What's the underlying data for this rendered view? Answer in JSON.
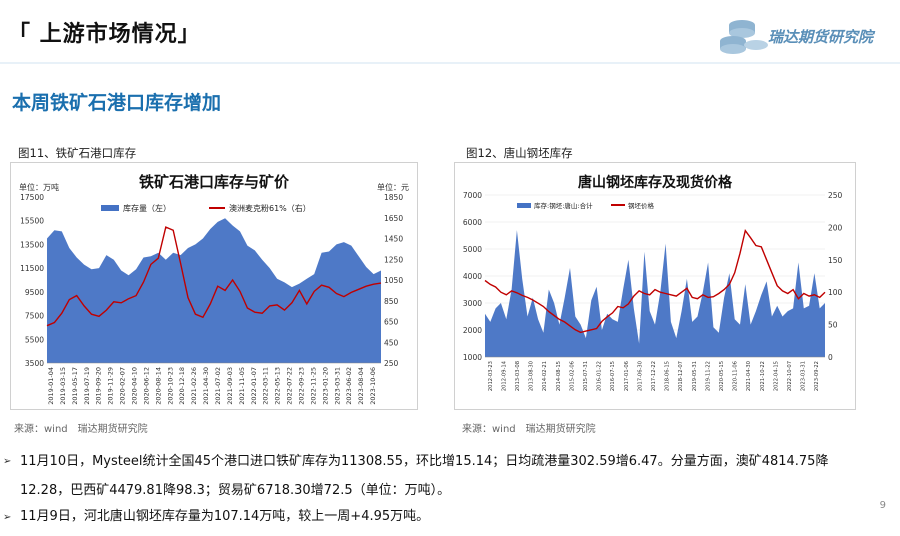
{
  "header": {
    "title": "「 上游市场情况」",
    "logo_text": "瑞达期货研究院"
  },
  "subtitle": "本周铁矿石港口库存增加",
  "fig11": {
    "caption": "图11、铁矿石港口库存",
    "chart_title": "铁矿石港口库存与矿价",
    "left_unit": "单位：万吨",
    "right_unit": "单位：元",
    "legend_area": "库存量（左）",
    "legend_line": "澳洲麦克粉61%（右）",
    "source": "来源：wind　瑞达期货研究院"
  },
  "fig12": {
    "caption": "图12、唐山钢坯库存",
    "chart_title": "唐山钢坯库存及现货价格",
    "legend_area": "库存:钢坯:唐山:合计",
    "legend_line": "钢坯价格",
    "source": "来源：wind　瑞达期货研究院"
  },
  "para1_line1": "11月10日，Mysteel统计全国45个港口进口铁矿库存为11308.55，环比增15.14；日均疏港量302.59增6.47。分量方面，澳矿4814.75降",
  "para1_line2": "12.28，巴西矿4479.81降98.3；贸易矿6718.30增72.5（单位：万吨）。",
  "para2": "11月9日，河北唐山钢坯库存量为107.14万吨，较上一周+4.95万吨。",
  "page_number": "9",
  "chart_data": [
    {
      "type": "area",
      "title": "铁矿石港口库存与矿价",
      "ylabel_left": "单位：万吨",
      "ylabel_right": "单位：元",
      "ylim_left": [
        3500,
        17500
      ],
      "yticks_left": [
        "17500",
        "15500",
        "13500",
        "11500",
        "9500",
        "7500",
        "5500",
        "3500"
      ],
      "ylim_right": [
        250,
        1850
      ],
      "yticks_right": [
        "1850",
        "1650",
        "1450",
        "1250",
        "1050",
        "850",
        "650",
        "450",
        "250"
      ],
      "x_ticks": [
        "2019-01-04",
        "2019-03-15",
        "2019-05-17",
        "2019-07-19",
        "2019-09-20",
        "2019-11-29",
        "2020-02-07",
        "2020-04-10",
        "2020-06-12",
        "2020-08-14",
        "2020-10-23",
        "2020-12-18",
        "2021-02-26",
        "2021-04-30",
        "2021-07-02",
        "2021-09-03",
        "2021-11-05",
        "2022-01-07",
        "2022-03-11",
        "2022-05-13",
        "2022-07-22",
        "2022-09-23",
        "2022-11-25",
        "2023-01-20",
        "2023-03-31",
        "2023-06-02",
        "2023-08-04",
        "2023-10-06"
      ],
      "series": [
        {
          "name": "库存量（左）",
          "kind": "area",
          "color": "#4472c4",
          "values": [
            14000,
            14700,
            14600,
            13200,
            12400,
            11800,
            11400,
            11500,
            12600,
            12200,
            11300,
            10900,
            11400,
            12400,
            12500,
            12800,
            12200,
            12800,
            12600,
            13200,
            13500,
            14000,
            14800,
            15400,
            15700,
            15100,
            14600,
            13400,
            13000,
            12200,
            11500,
            10600,
            10300,
            9900,
            10200,
            10600,
            11000,
            12800,
            12900,
            13500,
            13700,
            13400,
            12500,
            11600,
            11000,
            11300
          ]
        },
        {
          "name": "澳洲麦克粉61%（右）",
          "kind": "line",
          "color": "#c00000",
          "values": [
            610,
            640,
            730,
            860,
            900,
            800,
            720,
            700,
            760,
            840,
            830,
            870,
            900,
            1030,
            1200,
            1260,
            1560,
            1530,
            1210,
            880,
            720,
            690,
            820,
            990,
            950,
            1050,
            940,
            780,
            740,
            730,
            800,
            810,
            760,
            830,
            950,
            820,
            940,
            1000,
            980,
            920,
            890,
            930,
            960,
            990,
            1010,
            1020
          ]
        }
      ]
    },
    {
      "type": "area",
      "title": "唐山钢坯库存及现货价格",
      "ylim_left": [
        1000,
        7000
      ],
      "yticks_left": [
        "7000",
        "6000",
        "5000",
        "4000",
        "3000",
        "2000",
        "1000"
      ],
      "ylim_right": [
        0,
        250
      ],
      "yticks_right": [
        "250",
        "200",
        "150",
        "100",
        "50",
        "0"
      ],
      "x_ticks": [
        "2012-03-23",
        "2012-09-14",
        "2013-03-08",
        "2013-08-30",
        "2014-02-21",
        "2014-08-15",
        "2015-02-06",
        "2015-07-31",
        "2016-01-22",
        "2016-07-15",
        "2017-01-06",
        "2017-06-30",
        "2017-12-22",
        "2018-06-15",
        "2018-12-07",
        "2019-05-31",
        "2019-11-22",
        "2020-05-15",
        "2020-11-06",
        "2021-04-30",
        "2021-10-22",
        "2022-04-15",
        "2022-10-07",
        "2023-03-31",
        "2023-09-22"
      ],
      "series": [
        {
          "name": "库存:钢坯:唐山:合计",
          "kind": "area",
          "color": "#4472c4",
          "values": [
            2600,
            2300,
            2800,
            3000,
            2400,
            3500,
            5700,
            3900,
            2500,
            3200,
            2400,
            1900,
            3500,
            3000,
            2200,
            3200,
            4300,
            2500,
            2200,
            1700,
            3100,
            3600,
            2000,
            2600,
            2400,
            2300,
            3500,
            4600,
            2800,
            1500,
            4900,
            2700,
            2200,
            3400,
            5200,
            2300,
            1700,
            2700,
            3900,
            2300,
            2500,
            3400,
            4500,
            2100,
            1900,
            3200,
            4100,
            2400,
            2200,
            3700,
            2200,
            2700,
            3300,
            3800,
            2500,
            2900,
            2500,
            2700,
            2800,
            4500,
            2800,
            2900,
            4100,
            2800,
            3000
          ]
        },
        {
          "name": "钢坯价格",
          "kind": "line",
          "color": "#c00000",
          "values": [
            118,
            112,
            108,
            100,
            96,
            102,
            99,
            95,
            92,
            88,
            83,
            78,
            70,
            64,
            58,
            54,
            48,
            42,
            38,
            40,
            42,
            44,
            55,
            62,
            68,
            78,
            76,
            82,
            94,
            102,
            98,
            96,
            104,
            100,
            98,
            96,
            94,
            100,
            106,
            92,
            90,
            96,
            92,
            93,
            98,
            104,
            112,
            130,
            160,
            195,
            184,
            172,
            170,
            150,
            130,
            110,
            102,
            98,
            104,
            90,
            98,
            94,
            96,
            92,
            100
          ]
        }
      ]
    }
  ]
}
